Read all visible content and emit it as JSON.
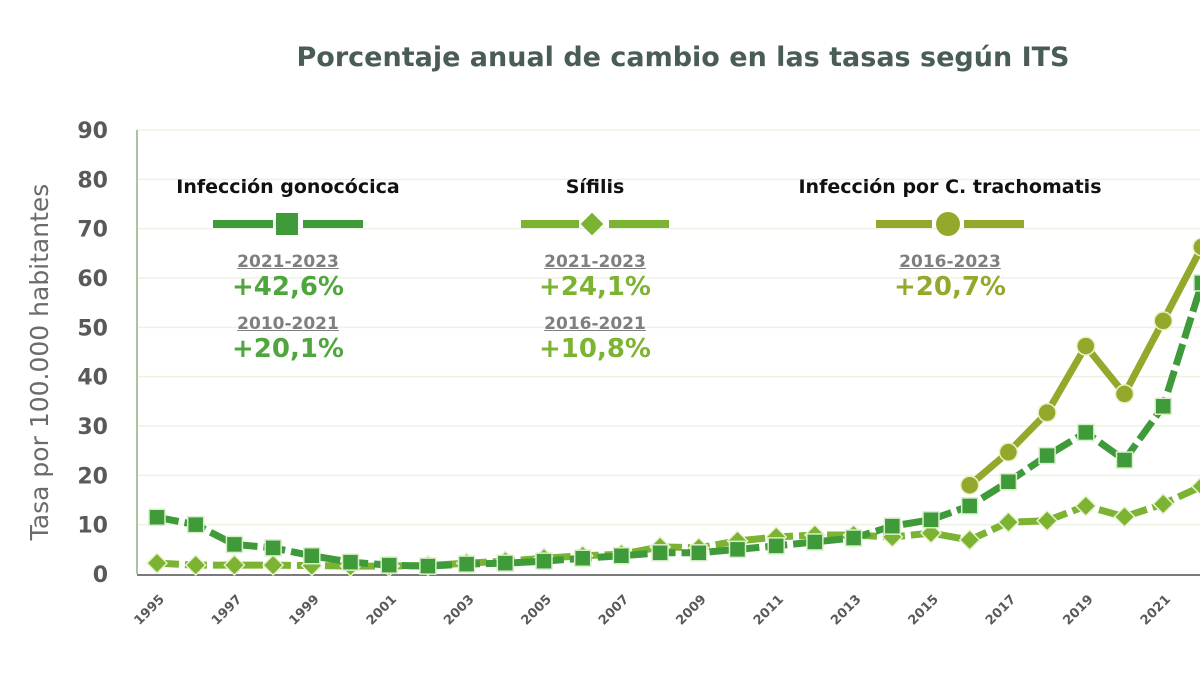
{
  "chart_data": {
    "type": "line",
    "title": "Porcentaje anual de cambio en las tasas según ITS",
    "xlabel": "",
    "ylabel": "Tasa por 100.000 habitantes",
    "ylim": [
      0,
      90
    ],
    "yticks": [
      0,
      10,
      20,
      30,
      40,
      50,
      60,
      70,
      80,
      90
    ],
    "x": [
      1995,
      1996,
      1997,
      1998,
      1999,
      2000,
      2001,
      2002,
      2003,
      2004,
      2005,
      2006,
      2007,
      2008,
      2009,
      2010,
      2011,
      2012,
      2013,
      2014,
      2015,
      2016,
      2017,
      2018,
      2019,
      2020,
      2021,
      2022
    ],
    "xtick_labels": [
      "1995",
      "1997",
      "1999",
      "2001",
      "2003",
      "2005",
      "2007",
      "2009",
      "2011",
      "2013",
      "2015",
      "2017",
      "2019",
      "2021"
    ],
    "grid": true,
    "legend_placement": "top-inside",
    "series": [
      {
        "name": "Infección gonocócica",
        "marker": "square",
        "color": "#3f9a3a",
        "values": [
          11.5,
          10.0,
          6.0,
          5.3,
          3.7,
          2.4,
          1.8,
          1.6,
          2.0,
          2.2,
          2.6,
          3.2,
          3.7,
          4.3,
          4.3,
          5.0,
          5.7,
          6.5,
          7.3,
          9.7,
          11.0,
          13.8,
          18.7,
          24.0,
          28.7,
          23.1,
          34.0,
          59.0
        ],
        "annotations": [
          {
            "period": "2021-2023",
            "change": "+42,6%"
          },
          {
            "period": "2010-2021",
            "change": "+20,1%"
          }
        ]
      },
      {
        "name": "Sífilis",
        "marker": "diamond",
        "color": "#7cb332",
        "values": [
          2.2,
          1.8,
          1.8,
          1.8,
          1.7,
          1.6,
          1.6,
          1.7,
          2.2,
          2.6,
          3.2,
          3.7,
          4.0,
          5.5,
          5.3,
          6.7,
          7.5,
          7.9,
          7.9,
          7.5,
          8.3,
          6.9,
          10.5,
          10.8,
          13.8,
          11.6,
          14.2,
          17.8
        ],
        "annotations": [
          {
            "period": "2021-2023",
            "change": "+24,1%"
          },
          {
            "period": "2016-2021",
            "change": "+10,8%"
          }
        ]
      },
      {
        "name": "Infección por C. trachomatis",
        "marker": "circle",
        "color": "#93a92c",
        "values": [
          null,
          null,
          null,
          null,
          null,
          null,
          null,
          null,
          null,
          null,
          null,
          null,
          null,
          null,
          null,
          null,
          null,
          null,
          null,
          null,
          null,
          18.0,
          24.7,
          32.7,
          46.2,
          36.5,
          51.3,
          66.3
        ],
        "annotations": [
          {
            "period": "2016-2023",
            "change": "+20,7%"
          }
        ]
      }
    ]
  }
}
